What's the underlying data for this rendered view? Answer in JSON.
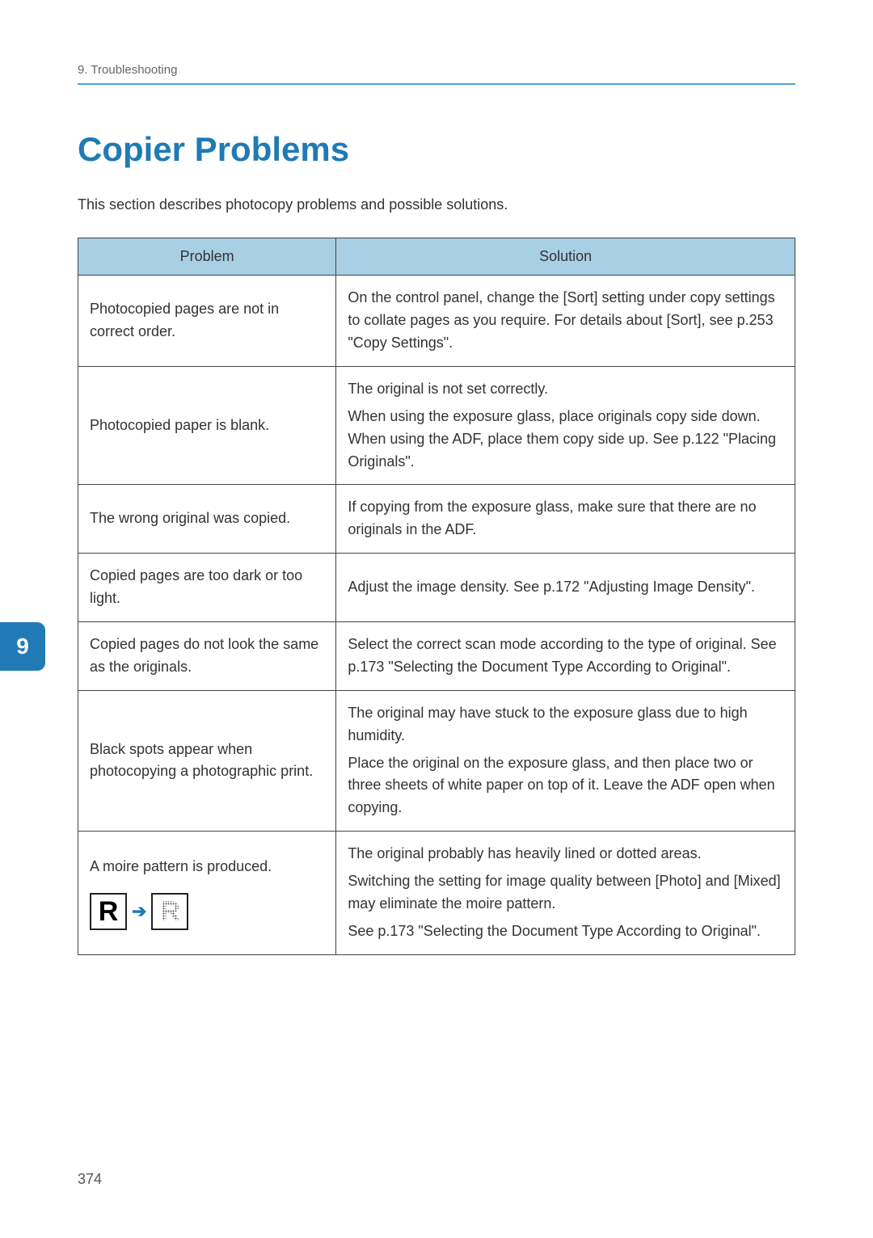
{
  "header": {
    "breadcrumb": "9. Troubleshooting"
  },
  "title": "Copier Problems",
  "intro": "This section describes photocopy problems and possible solutions.",
  "table": {
    "columns": [
      "Problem",
      "Solution"
    ],
    "rows": [
      {
        "problem": "Photocopied pages are not in correct order.",
        "solution": [
          "On the control panel, change the [Sort] setting under copy settings to collate pages as you require. For details about [Sort], see p.253 \"Copy Settings\"."
        ]
      },
      {
        "problem": "Photocopied paper is blank.",
        "solution": [
          "The original is not set correctly.",
          "When using the exposure glass, place originals copy side down. When using the ADF, place them copy side up. See p.122 \"Placing Originals\"."
        ]
      },
      {
        "problem": "The wrong original was copied.",
        "solution": [
          "If copying from the exposure glass, make sure that there are no originals in the ADF."
        ]
      },
      {
        "problem": "Copied pages are too dark or too light.",
        "solution": [
          "Adjust the image density. See p.172 \"Adjusting Image Density\"."
        ]
      },
      {
        "problem": "Copied pages do not look the same as the originals.",
        "solution": [
          "Select the correct scan mode according to the type of original. See p.173 \"Selecting the Document Type According to Original\"."
        ]
      },
      {
        "problem": "Black spots appear when photocopying a photographic print.",
        "solution": [
          "The original may have stuck to the exposure glass due to high humidity.",
          "Place the original on the exposure glass, and then place two or three sheets of white paper on top of it. Leave the ADF open when copying."
        ]
      },
      {
        "problem": "A moire pattern is produced.",
        "solution": [
          "The original probably has heavily lined or dotted areas.",
          "Switching the setting for image quality between [Photo] and [Mixed] may eliminate the moire pattern.",
          "See p.173 \"Selecting the Document Type According to Original\"."
        ]
      }
    ]
  },
  "chapter_tab": "9",
  "page_number": "374",
  "moire": {
    "letter_solid": "R",
    "letter_pattern": "R",
    "arrow": "➔"
  },
  "colors": {
    "accent": "#1f7ab5",
    "header_bg": "#a8cfe3",
    "rule": "#4ba3d6"
  }
}
